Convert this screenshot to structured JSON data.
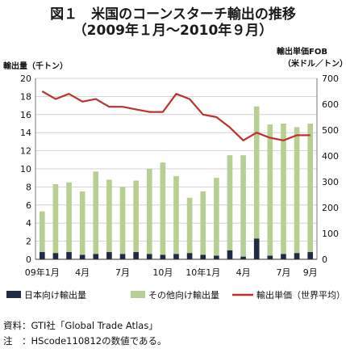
{
  "chart_data": {
    "type": "bar+line",
    "title": "図１　米国のコーンスターチ輸出の推移",
    "subtitle": "（2009年１月～2010年９月）",
    "ylabel": "輸出量（千トン）",
    "ylabel_right": [
      "輸出単価FOB",
      "（米ドル／トン）"
    ],
    "ylim": [
      0,
      20
    ],
    "ylim_right": [
      0,
      700
    ],
    "yticks": [
      "0",
      "2",
      "4",
      "6",
      "8",
      "10",
      "12",
      "14",
      "16",
      "18",
      "20"
    ],
    "yticks_right": [
      "0",
      "100",
      "200",
      "300",
      "400",
      "500",
      "600",
      "700"
    ],
    "x_tick_labels": [
      "09年1月",
      "4月",
      "7月",
      "10月",
      "10年1月",
      "4月",
      "7月",
      "9月"
    ],
    "x_tick_index": [
      0,
      3,
      6,
      9,
      12,
      15,
      18,
      20
    ],
    "grid": true,
    "stacked": true,
    "series": [
      {
        "name": "日本向け輸出量",
        "type": "bar",
        "axis": "left",
        "color": "#1f2a44",
        "values": [
          0.8,
          0.7,
          0.8,
          0.5,
          0.6,
          0.8,
          0.6,
          0.8,
          0.6,
          0.5,
          0.6,
          0.7,
          0.5,
          0.4,
          1.0,
          0.3,
          2.3,
          0.4,
          0.6,
          0.7,
          0.8
        ]
      },
      {
        "name": "その他向け輸出量",
        "type": "bar",
        "axis": "left",
        "color": "#b7cf93",
        "values": [
          4.5,
          7.6,
          7.7,
          7.0,
          9.1,
          8.0,
          7.4,
          7.9,
          9.4,
          10.2,
          8.6,
          6.1,
          7.0,
          8.6,
          10.5,
          11.2,
          14.6,
          14.5,
          14.4,
          13.9,
          14.2
        ]
      },
      {
        "name": "輸出単価（世界平均）",
        "type": "line",
        "axis": "right",
        "color": "#c0302a",
        "values": [
          650,
          620,
          640,
          610,
          620,
          590,
          590,
          580,
          570,
          570,
          640,
          620,
          560,
          550,
          510,
          460,
          490,
          470,
          460,
          480,
          480
        ]
      }
    ]
  },
  "notes": {
    "source": "資料：GTI社「Global Trade Atlas」",
    "note": "注　：HScode110812の数値である。"
  }
}
